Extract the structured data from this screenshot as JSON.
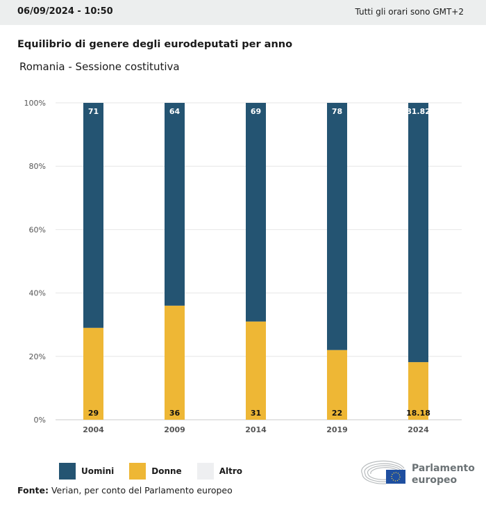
{
  "header": {
    "date": "06/09/2024 - 10:50",
    "timezone": "Tutti gli orari sono GMT+2"
  },
  "title": "Equilibrio di genere degli eurodeputati per anno",
  "subtitle": "Romania - Sessione costitutiva",
  "chart_data": {
    "type": "bar",
    "stacked": true,
    "categories": [
      "2004",
      "2009",
      "2014",
      "2019",
      "2024"
    ],
    "series": [
      {
        "name": "Donne",
        "color": "#eeb735",
        "values": [
          29,
          36,
          31,
          22,
          18.18
        ],
        "labels": [
          "29",
          "36",
          "31",
          "22",
          "18.18"
        ]
      },
      {
        "name": "Uomini",
        "color": "#245472",
        "values": [
          71,
          64,
          69,
          78,
          81.82
        ],
        "labels": [
          "71",
          "64",
          "69",
          "78",
          "81.82"
        ]
      }
    ],
    "yticks": [
      "0%",
      "20%",
      "40%",
      "60%",
      "80%",
      "100%"
    ],
    "ylim": [
      0,
      100
    ],
    "grid": true
  },
  "legend": [
    {
      "label": "Uomini",
      "color": "#245472"
    },
    {
      "label": "Donne",
      "color": "#eeb735"
    },
    {
      "label": "Altro",
      "color": "#eeeff1"
    }
  ],
  "source": {
    "label": "Fonte:",
    "text": " Verian, per conto del Parlamento europeo"
  },
  "logo": {
    "line1": "Parlamento",
    "line2": "europeo"
  }
}
